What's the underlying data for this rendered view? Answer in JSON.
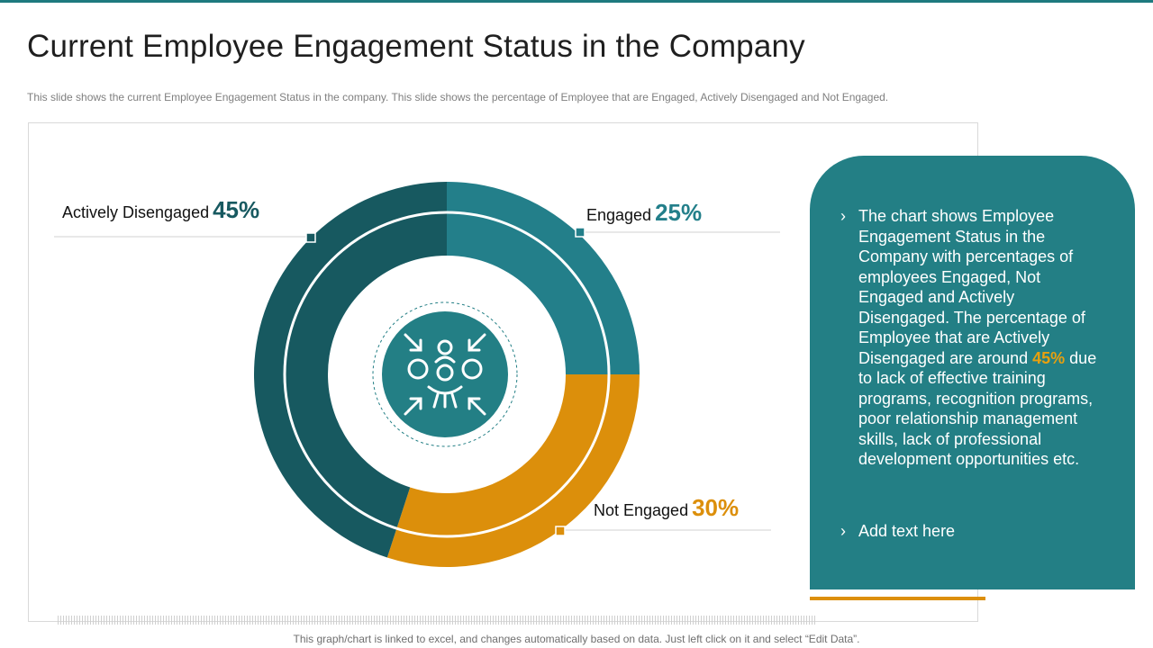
{
  "header": {
    "title": "Current Employee Engagement Status in the Company",
    "subtitle": "This slide shows the current Employee Engagement Status in the company. This slide shows the percentage of Employee that are Engaged, Actively Disengaged  and Not Engaged."
  },
  "chart_data": {
    "type": "pie",
    "title": "Employee Engagement Status",
    "unit": "%",
    "slices": [
      {
        "name": "Engaged",
        "value": 25,
        "label": "25%",
        "color": "#237f8a"
      },
      {
        "name": "Not Engaged",
        "value": 30,
        "label": "30%",
        "color": "#dc8f0b"
      },
      {
        "name": "Actively Disengaged",
        "value": 45,
        "label": "45%",
        "color": "#175960"
      }
    ]
  },
  "center_icon": "team-collaboration-icon",
  "info_card": {
    "point1_before": "The chart shows Employee Engagement Status in the Company with percentages of employees Engaged, Not Engaged and Actively Disengaged. The percentage of Employee that are Actively Disengaged are around ",
    "point1_highlight": "45%",
    "point1_after": " due to lack of effective training programs, recognition programs, poor relationship management skills, lack of professional development opportunities etc.",
    "point2": "Add text here",
    "bullet_icon": "chevron-right-icon"
  },
  "footer": {
    "note": "This graph/chart is linked to excel, and changes automatically based on data. Just left click on it and select “Edit Data”."
  },
  "colors": {
    "accent_teal": "#237f85",
    "dark_teal": "#175960",
    "orange": "#dc8f0b"
  }
}
